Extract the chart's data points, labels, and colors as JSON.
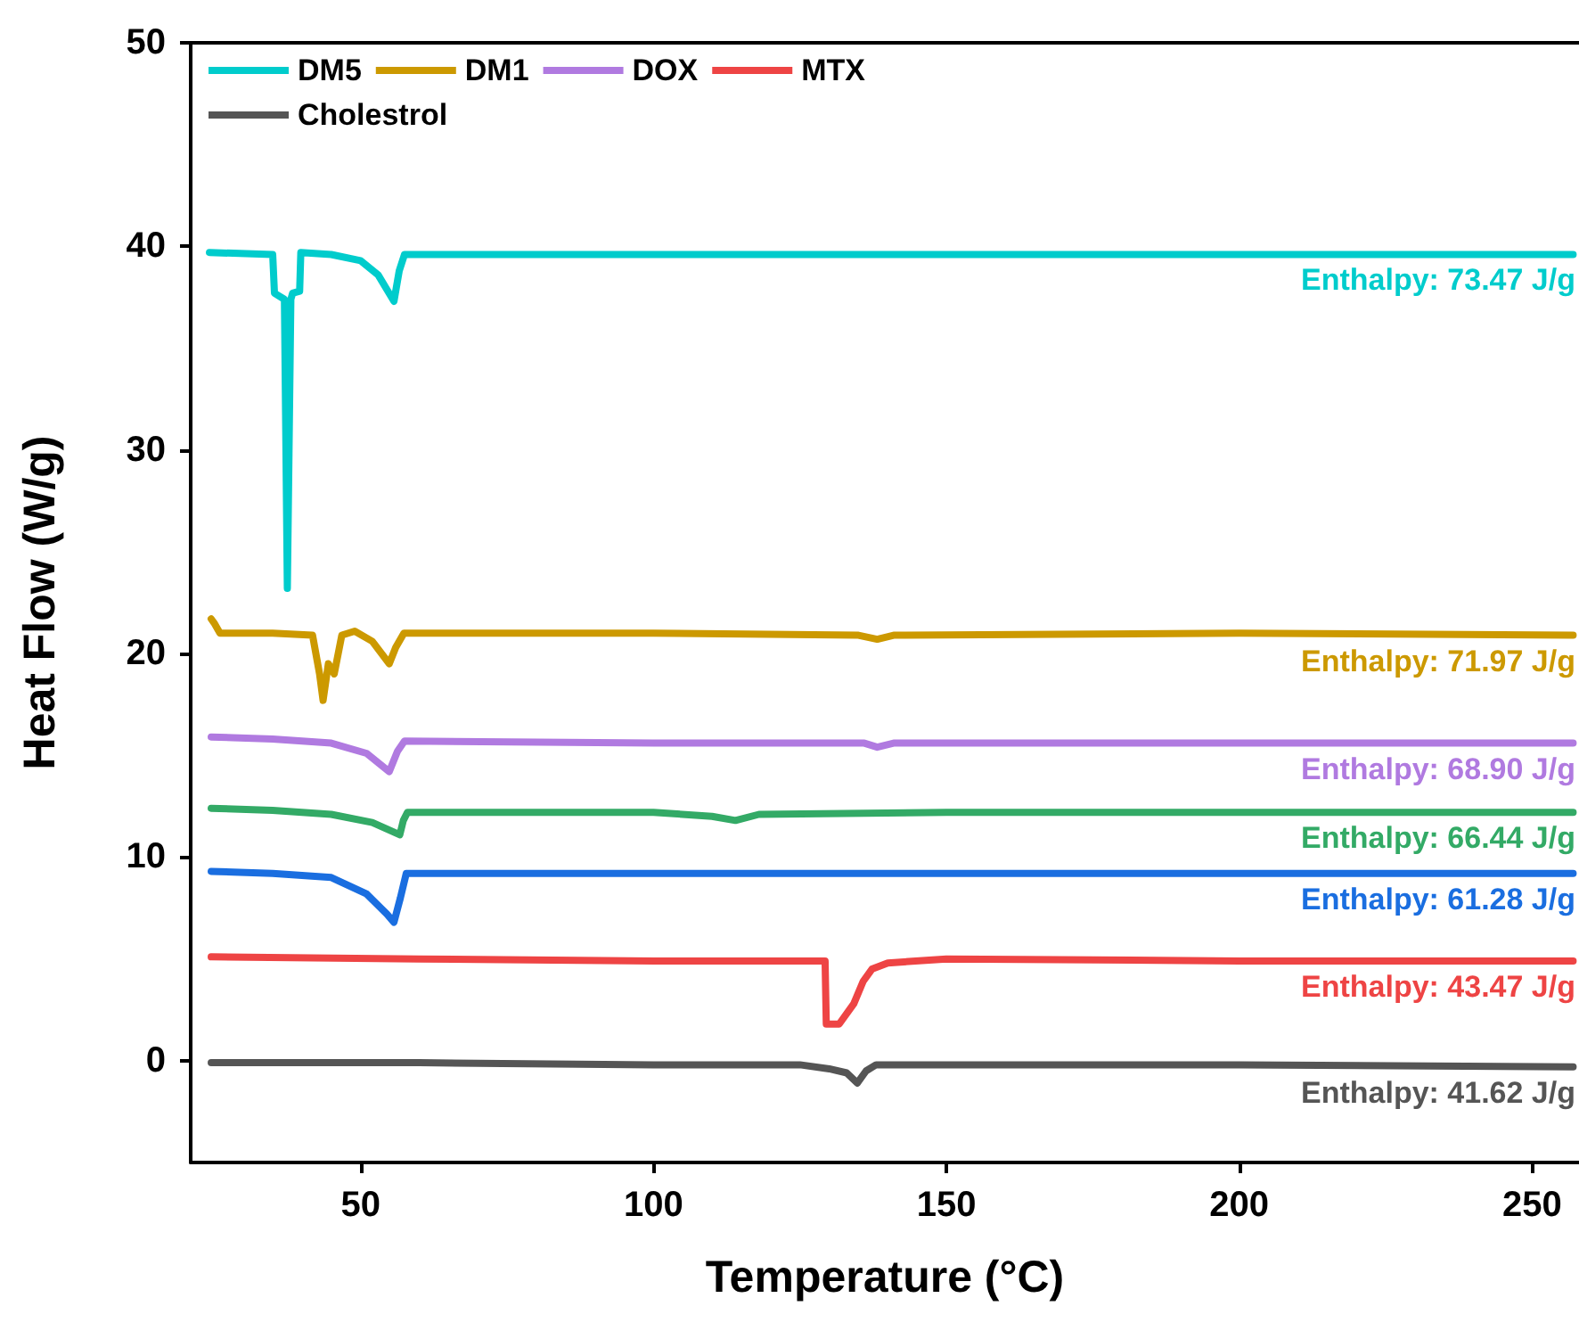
{
  "chart_data": {
    "type": "line",
    "xlabel": "Temperature (°C)",
    "ylabel": "Heat Flow (W/g)",
    "xlim": [
      21,
      258
    ],
    "xticks": [
      50,
      100,
      150,
      200,
      250
    ],
    "ylim": [
      -5,
      50
    ],
    "yticks": [
      0,
      10,
      20,
      30,
      40,
      50
    ],
    "grid": false,
    "legend": "top left",
    "marker": "none",
    "line_style": "solid",
    "series": [
      {
        "name": "DM5",
        "color": "#00cccc",
        "x": [
          24.2,
          35.0,
          35.3,
          37.0,
          37.5,
          38.1,
          38.4,
          39.6,
          39.8,
          45,
          50,
          53,
          55.7,
          56.6,
          57.5,
          100,
          150,
          200,
          257
        ],
        "values": [
          39.7,
          39.6,
          37.7,
          37.4,
          23.2,
          37.4,
          37.7,
          37.8,
          39.7,
          39.6,
          39.3,
          38.6,
          37.3,
          38.8,
          39.6,
          39.6,
          39.6,
          39.6,
          39.6
        ]
      },
      {
        "name": "DM1",
        "color": "#cc9900",
        "x": [
          24.5,
          25.0,
          26,
          35,
          41.8,
          43.0,
          43.6,
          44.5,
          45.5,
          46.8,
          49,
          52,
          54.9,
          56.0,
          57.4,
          100,
          135,
          138.2,
          141,
          200,
          257
        ],
        "values": [
          21.7,
          21.5,
          21.0,
          21.0,
          20.9,
          19.0,
          17.7,
          19.5,
          19.0,
          20.9,
          21.1,
          20.6,
          19.5,
          20.3,
          21.0,
          21.0,
          20.9,
          20.7,
          20.9,
          21.0,
          20.9
        ]
      },
      {
        "name": "DOX",
        "color": "#b07ae0",
        "x": [
          24.5,
          35,
          45,
          51,
          54.9,
          56.3,
          57.5,
          100,
          136,
          138.2,
          141,
          200,
          257
        ],
        "values": [
          15.9,
          15.8,
          15.6,
          15.1,
          14.2,
          15.2,
          15.7,
          15.6,
          15.6,
          15.4,
          15.6,
          15.6,
          15.6
        ]
      },
      {
        "color": "#33aa66",
        "x": [
          24.5,
          35,
          45,
          52,
          56.7,
          57.3,
          58,
          100,
          110,
          114,
          118,
          150,
          200,
          257
        ],
        "values": [
          12.4,
          12.3,
          12.1,
          11.7,
          11.1,
          11.8,
          12.2,
          12.2,
          12.0,
          11.8,
          12.1,
          12.2,
          12.2,
          12.2
        ]
      },
      {
        "color": "#1a6ee0",
        "x": [
          24.5,
          35,
          45,
          51,
          54.5,
          55.7,
          56.8,
          57.8,
          100,
          150,
          200,
          257
        ],
        "values": [
          9.3,
          9.2,
          9.0,
          8.2,
          7.2,
          6.8,
          8.0,
          9.2,
          9.2,
          9.2,
          9.2,
          9.2
        ]
      },
      {
        "name": "MTX",
        "color": "#ee4444",
        "x": [
          24.5,
          60,
          100,
          129.3,
          129.5,
          131.7,
          134.2,
          135.8,
          137.3,
          140,
          150,
          200,
          257
        ],
        "values": [
          5.1,
          5.0,
          4.9,
          4.9,
          1.8,
          1.8,
          2.8,
          3.9,
          4.5,
          4.8,
          5.0,
          4.9,
          4.9
        ]
      },
      {
        "name": "Cholestrol",
        "color": "#555555",
        "x": [
          24.5,
          60,
          100,
          125,
          130,
          133,
          134.8,
          136.3,
          138,
          150,
          200,
          257
        ],
        "values": [
          -0.1,
          -0.1,
          -0.2,
          -0.2,
          -0.4,
          -0.6,
          -1.1,
          -0.5,
          -0.2,
          -0.2,
          -0.2,
          -0.3
        ]
      }
    ],
    "annotations": [
      "Enthalpy: 73.47 J/g",
      "Enthalpy: 71.97 J/g",
      "Enthalpy: 68.90 J/g",
      "Enthalpy: 66.44 J/g",
      "Enthalpy: 61.28 J/g",
      "Enthalpy: 43.47 J/g",
      "Enthalpy: 41.62 J/g"
    ]
  }
}
